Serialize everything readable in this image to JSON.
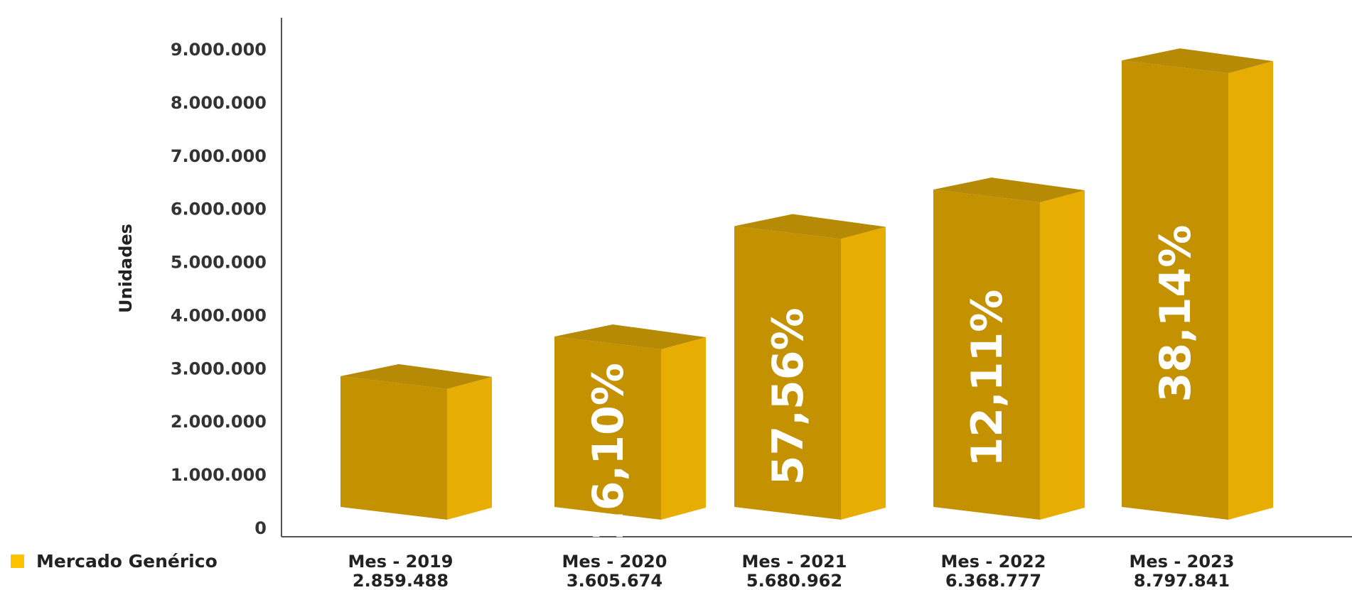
{
  "chart_data": {
    "type": "bar",
    "categories": [
      "Mes - 2019",
      "Mes - 2020",
      "Mes - 2021",
      "Mes - 2022",
      "Mes - 2023"
    ],
    "series": [
      {
        "name": "Mercado Genérico",
        "values": [
          2859488,
          3605674,
          5680962,
          6368777,
          8797841
        ],
        "value_labels": [
          "2.859.488",
          "3.605.674",
          "5.680.962",
          "6.368.777",
          "8.797.841"
        ],
        "growth_labels": [
          "",
          "26,10%",
          "57,56%",
          "12,11%",
          "38,14%"
        ]
      }
    ],
    "ylabel": "Unidades",
    "ylim": [
      0,
      9000000
    ],
    "yticks": [
      0,
      1000000,
      2000000,
      3000000,
      4000000,
      5000000,
      6000000,
      7000000,
      8000000,
      9000000
    ],
    "ytick_labels": [
      "0",
      "1.000.000",
      "2.000.000",
      "3.000.000",
      "4.000.000",
      "5.000.000",
      "6.000.000",
      "7.000.000",
      "8.000.000",
      "9.000.000"
    ],
    "legend_position": "bottom-left",
    "grid": false,
    "bar_style": "3d"
  },
  "colors": {
    "front": "#C49100",
    "side": "#E8AD03",
    "top": "#B78A06",
    "swatch": "#FFC000",
    "axis": "#555555"
  }
}
